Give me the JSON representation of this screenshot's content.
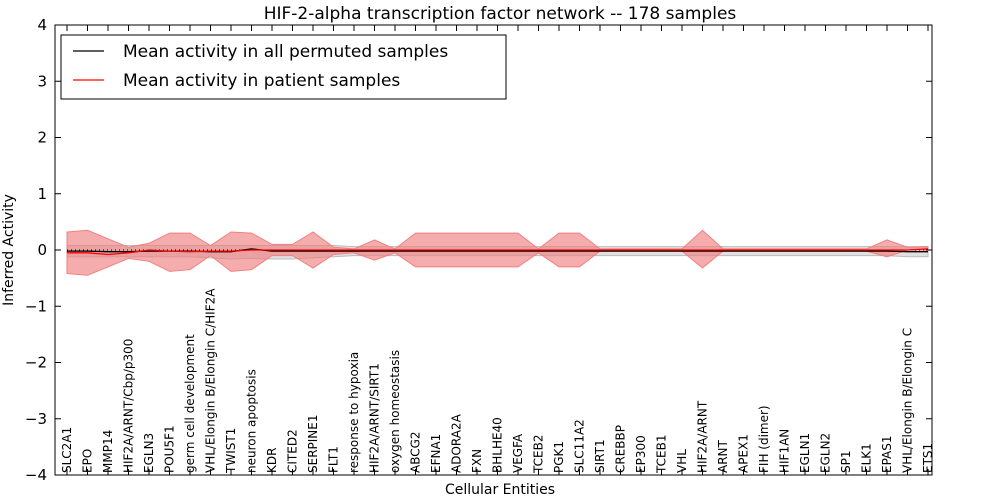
{
  "chart_data": {
    "type": "line",
    "title": "HIF-2-alpha transcription factor network -- 178 samples",
    "xlabel": "Cellular Entities",
    "ylabel": "Inferred Activity",
    "ylim": [
      -4,
      4
    ],
    "yticks": [
      4,
      3,
      2,
      1,
      0,
      -1,
      -2,
      -3,
      -4
    ],
    "ytick_labels": [
      "4",
      "3",
      "2",
      "1",
      "0",
      "−1",
      "−2",
      "−3",
      "−4"
    ],
    "grid": false,
    "legend_position": "top-left",
    "categories": [
      "SLC2A1",
      "EPO",
      "MMP14",
      "HIF2A/ARNT/Cbp/p300",
      "EGLN3",
      "POU5F1",
      "germ cell development",
      "VHL/Elongin B/Elongin C/HIF2A",
      "TWIST1",
      "neuron apoptosis",
      "KDR",
      "CITED2",
      "SERPINE1",
      "FLT1",
      "response to hypoxia",
      "HIF2A/ARNT/SIRT1",
      "oxygen homeostasis",
      "ABCG2",
      "EFNA1",
      "ADORA2A",
      "FXN",
      "BHLHE40",
      "VEGFA",
      "TCEB2",
      "PGK1",
      "SLC11A2",
      "SIRT1",
      "CREBBP",
      "EP300",
      "TCEB1",
      "VHL",
      "HIF2A/ARNT",
      "ARNT",
      "APEX1",
      "FIH (dimer)",
      "HIF1AN",
      "EGLN1",
      "EGLN2",
      "SP1",
      "ELK1",
      "EPAS1",
      "VHL/Elongin B/Elongin C",
      "ETS1"
    ],
    "series": [
      {
        "name": "Mean activity in all permuted samples",
        "color": "#000000",
        "band_color": "#bbbbbb",
        "values": [
          -0.02,
          -0.02,
          -0.03,
          -0.03,
          -0.02,
          -0.02,
          -0.02,
          -0.03,
          -0.03,
          0.02,
          -0.02,
          -0.02,
          -0.02,
          -0.02,
          -0.02,
          -0.02,
          -0.02,
          -0.02,
          -0.02,
          -0.02,
          -0.02,
          -0.02,
          -0.02,
          -0.02,
          -0.02,
          -0.02,
          -0.02,
          -0.02,
          -0.02,
          -0.02,
          -0.02,
          -0.02,
          -0.02,
          -0.02,
          -0.02,
          -0.02,
          -0.02,
          -0.02,
          -0.02,
          -0.02,
          -0.02,
          -0.03,
          -0.03
        ],
        "lower": [
          -0.12,
          -0.12,
          -0.12,
          -0.12,
          -0.12,
          -0.12,
          -0.12,
          -0.14,
          -0.16,
          -0.15,
          -0.16,
          -0.16,
          -0.14,
          -0.12,
          -0.1,
          -0.1,
          -0.1,
          -0.1,
          -0.1,
          -0.1,
          -0.1,
          -0.1,
          -0.1,
          -0.1,
          -0.1,
          -0.1,
          -0.1,
          -0.1,
          -0.1,
          -0.1,
          -0.1,
          -0.1,
          -0.1,
          -0.1,
          -0.1,
          -0.1,
          -0.1,
          -0.1,
          -0.1,
          -0.1,
          -0.1,
          -0.12,
          -0.12
        ],
        "upper": [
          0.08,
          0.08,
          0.08,
          0.08,
          0.08,
          0.08,
          0.08,
          0.08,
          0.08,
          0.08,
          0.08,
          0.08,
          0.08,
          0.08,
          0.06,
          0.06,
          0.06,
          0.06,
          0.06,
          0.06,
          0.06,
          0.06,
          0.06,
          0.06,
          0.06,
          0.06,
          0.06,
          0.06,
          0.06,
          0.06,
          0.06,
          0.06,
          0.06,
          0.06,
          0.06,
          0.06,
          0.06,
          0.06,
          0.06,
          0.06,
          0.06,
          0.06,
          0.06
        ]
      },
      {
        "name": "Mean activity in patient samples",
        "color": "#ff0000",
        "band_color": "#f08080",
        "values": [
          -0.05,
          -0.05,
          -0.08,
          -0.05,
          0.0,
          -0.02,
          -0.03,
          -0.02,
          -0.02,
          0.0,
          0.0,
          0.0,
          0.0,
          0.0,
          0.0,
          0.0,
          0.0,
          0.0,
          0.0,
          0.0,
          0.0,
          0.0,
          0.0,
          0.0,
          0.0,
          0.0,
          0.0,
          0.0,
          0.0,
          0.0,
          0.0,
          0.0,
          0.0,
          0.0,
          0.0,
          0.0,
          0.0,
          0.0,
          0.0,
          0.0,
          0.0,
          0.0,
          0.02
        ],
        "lower": [
          -0.42,
          -0.45,
          -0.3,
          -0.15,
          -0.2,
          -0.38,
          -0.35,
          -0.1,
          -0.38,
          -0.35,
          -0.1,
          -0.1,
          -0.32,
          -0.08,
          -0.05,
          -0.18,
          -0.05,
          -0.3,
          -0.3,
          -0.3,
          -0.3,
          -0.3,
          -0.3,
          -0.05,
          -0.3,
          -0.3,
          -0.02,
          -0.02,
          -0.02,
          -0.02,
          -0.02,
          -0.32,
          -0.02,
          -0.02,
          -0.02,
          -0.02,
          -0.02,
          -0.02,
          -0.02,
          -0.02,
          -0.12,
          0.0,
          0.0
        ],
        "upper": [
          0.32,
          0.35,
          0.2,
          0.05,
          0.12,
          0.3,
          0.3,
          0.08,
          0.32,
          0.3,
          0.1,
          0.1,
          0.32,
          0.05,
          0.02,
          0.18,
          0.02,
          0.3,
          0.3,
          0.3,
          0.3,
          0.3,
          0.3,
          0.02,
          0.3,
          0.3,
          0.02,
          0.02,
          0.02,
          0.02,
          0.02,
          0.35,
          0.02,
          0.02,
          0.02,
          0.02,
          0.02,
          0.02,
          0.02,
          0.02,
          0.18,
          0.05,
          0.06
        ]
      }
    ]
  }
}
